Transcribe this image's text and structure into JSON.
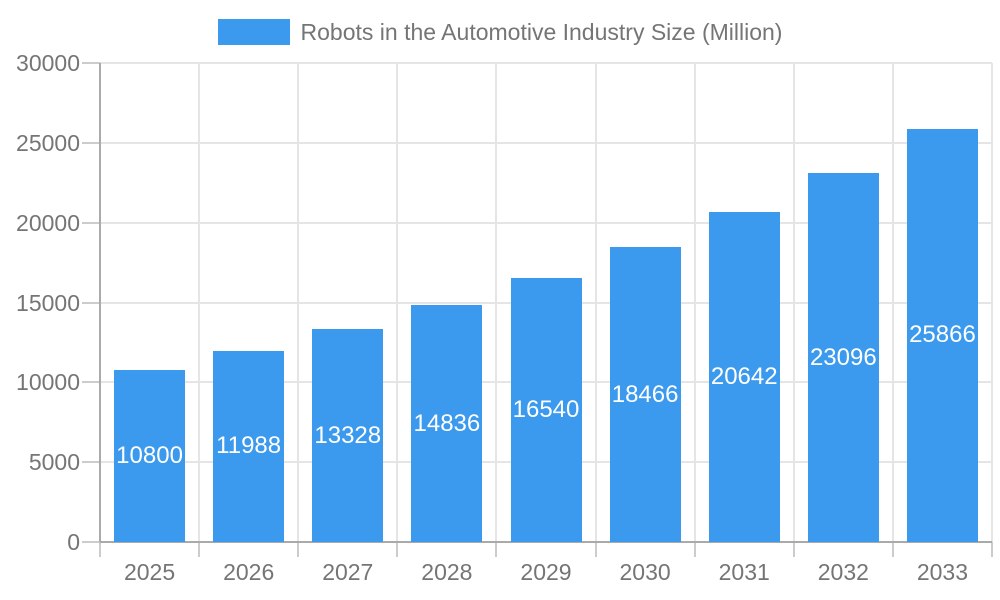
{
  "legend": {
    "label": "Robots in the Automotive Industry Size (Million)"
  },
  "colors": {
    "bar": "#3b99ee",
    "axis": "#aaaaaa",
    "grid": "#e5e5e5",
    "tick": "#cccccc",
    "text": "#757575",
    "value_label": "#ffffff",
    "background": "#ffffff"
  },
  "chart_data": {
    "type": "bar",
    "title": "Robots in the Automotive Industry Size (Million)",
    "categories": [
      "2025",
      "2026",
      "2027",
      "2028",
      "2029",
      "2030",
      "2031",
      "2032",
      "2033"
    ],
    "values": [
      10800,
      11988,
      13328,
      14836,
      16540,
      18466,
      20642,
      23096,
      25866
    ],
    "xlabel": "",
    "ylabel": "",
    "ylim": [
      0,
      30000
    ],
    "ytick_step": 5000,
    "ytick_labels": [
      "0",
      "5000",
      "10000",
      "15000",
      "20000",
      "25000",
      "30000"
    ],
    "grid": true,
    "legend_position": "top-center",
    "value_labels": "inside-center-white"
  }
}
